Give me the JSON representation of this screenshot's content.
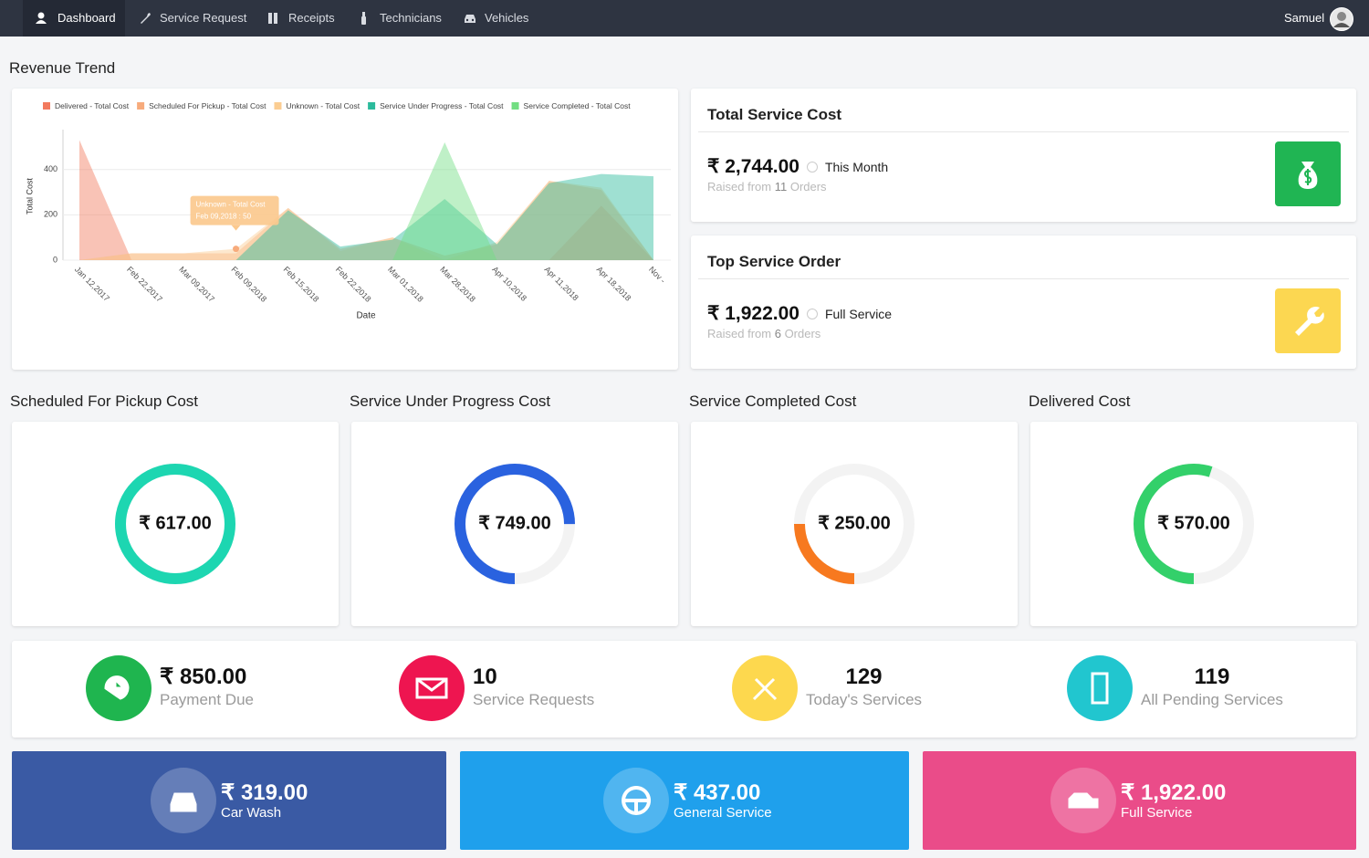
{
  "nav": {
    "items": [
      "Dashboard",
      "Service Request",
      "Receipts",
      "Technicians",
      "Vehicles"
    ],
    "user": "Samuel"
  },
  "revenue_trend": {
    "title": "Revenue Trend"
  },
  "chart_data": {
    "type": "area",
    "x_label": "Date",
    "y_label": "Total Cost",
    "categories": [
      "Jan 12,2017",
      "Feb 22,2017",
      "Mar 09,2017",
      "Feb 09,2018",
      "Feb 15,2018",
      "Feb 22,2018",
      "Mar 01,2018",
      "Mar 28,2018",
      "Apr 10,2018",
      "Apr 11,2018",
      "Apr 18,2018",
      "Nov -"
    ],
    "series": [
      {
        "name": "Delivered - Total Cost",
        "color": "#f27a5e",
        "values": [
          530,
          0,
          0,
          0,
          0,
          0,
          0,
          0,
          0,
          0,
          240,
          0
        ]
      },
      {
        "name": "Scheduled For Pickup - Total Cost",
        "color": "#f7ab7c",
        "values": [
          0,
          30,
          30,
          30,
          230,
          50,
          100,
          20,
          70,
          350,
          310,
          0
        ]
      },
      {
        "name": "Unknown - Total Cost",
        "color": "#fbcd92",
        "values": [
          0,
          30,
          30,
          50,
          230,
          40,
          100,
          0,
          80,
          350,
          320,
          0
        ]
      },
      {
        "name": "Service Under Progress - Total Cost",
        "color": "#2bbb9c",
        "values": [
          0,
          0,
          0,
          0,
          220,
          60,
          90,
          270,
          70,
          340,
          380,
          370
        ]
      },
      {
        "name": "Service Completed - Total Cost",
        "color": "#72de82",
        "values": [
          0,
          0,
          0,
          0,
          0,
          0,
          0,
          520,
          0,
          0,
          0,
          0
        ]
      }
    ],
    "ylim": [
      0,
      560
    ],
    "yticks": [
      0,
      200,
      400
    ],
    "grid": true,
    "tooltip": {
      "title": "Unknown - Total Cost",
      "text": "Feb 09,2018 : 50"
    }
  },
  "summary_cards": [
    {
      "title": "Total Service Cost",
      "amount": "₹ 2,744.00",
      "note": "This Month",
      "raised_prefix": "Raised from",
      "orders": "11",
      "orders_suffix": "Orders"
    },
    {
      "title": "Top Service Order",
      "amount": "₹ 1,922.00",
      "note": "Full Service",
      "raised_prefix": "Raised from",
      "orders": "6",
      "orders_suffix": "Orders"
    }
  ],
  "cost_cards": [
    {
      "title": "Scheduled For Pickup Cost",
      "amount": "₹ 617.00",
      "percent": 100
    },
    {
      "title": "Service Under Progress Cost",
      "amount": "₹ 749.00",
      "percent": 75
    },
    {
      "title": "Service Completed Cost",
      "amount": "₹ 250.00",
      "percent": 25
    },
    {
      "title": "Delivered Cost",
      "amount": "₹ 570.00",
      "percent": 55
    }
  ],
  "stats": [
    {
      "value": "₹ 850.00",
      "label": "Payment Due"
    },
    {
      "value": "10",
      "label": "Service Requests"
    },
    {
      "value": "129",
      "label": "Today's Services"
    },
    {
      "value": "119",
      "label": "All Pending Services"
    }
  ],
  "tiles": [
    {
      "value": "₹ 319.00",
      "label": "Car Wash"
    },
    {
      "value": "₹ 437.00",
      "label": "General Service"
    },
    {
      "value": "₹ 1,922.00",
      "label": "Full Service"
    }
  ]
}
